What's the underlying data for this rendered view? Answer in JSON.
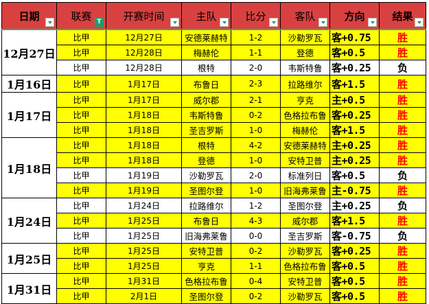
{
  "headers": [
    "日期",
    "联赛",
    "开赛时间",
    "主队",
    "比分",
    "客队",
    "方向",
    "结果"
  ],
  "colors": {
    "header_bg": "#D94141",
    "highlight": "#FFFF00",
    "win": "#FF0000"
  },
  "groups": [
    {
      "date": "12月27日",
      "rows": [
        [
          "比甲",
          "12月27日",
          "安德莱赫特",
          "1-2",
          "沙勒罗瓦",
          "客+0.75",
          "胜"
        ],
        [
          "比甲",
          "12月28日",
          "梅赫伦",
          "1-1",
          "登德",
          "客+0.5",
          "胜"
        ],
        [
          "比甲",
          "12月28日",
          "根特",
          "2-0",
          "韦斯特鲁",
          "客+0.25",
          "负"
        ]
      ]
    },
    {
      "date": "1月16日",
      "rows": [
        [
          "比甲",
          "1月17日",
          "布鲁日",
          "2-3",
          "拉路维尔",
          "客+1.5",
          "胜"
        ]
      ]
    },
    {
      "date": "1月17日",
      "rows": [
        [
          "比甲",
          "1月17日",
          "威尔郡",
          "2-1",
          "亨克",
          "主+0.5",
          "胜"
        ],
        [
          "比甲",
          "1月18日",
          "韦斯特鲁",
          "0-2",
          "色格拉布鲁",
          "客+0.25",
          "胜"
        ],
        [
          "比甲",
          "1月18日",
          "圣吉罗斯",
          "1-0",
          "梅赫伦",
          "客+1.5",
          "胜"
        ]
      ]
    },
    {
      "date": "1月18日",
      "rows": [
        [
          "比甲",
          "1月18日",
          "根特",
          "4-2",
          "安德莱赫特",
          "主+0.25",
          "胜"
        ],
        [
          "比甲",
          "1月18日",
          "登德",
          "1-0",
          "安特卫普",
          "主+0.25",
          "胜"
        ],
        [
          "比甲",
          "1月19日",
          "沙勒罗瓦",
          "2-0",
          "标准列日",
          "客+0.5",
          "负"
        ],
        [
          "比甲",
          "1月19日",
          "圣图尔登",
          "1-0",
          "旧海弗莱鲁",
          "主-0.75",
          "胜"
        ]
      ]
    },
    {
      "date": "1月24日",
      "rows": [
        [
          "比甲",
          "1月24日",
          "拉路维尔",
          "1-2",
          "圣图尔登",
          "主+0.25",
          "负"
        ],
        [
          "比甲",
          "1月25日",
          "布鲁日",
          "4-3",
          "威尔郡",
          "客+1.5",
          "胜"
        ],
        [
          "比甲",
          "1月25日",
          "旧海弗莱鲁",
          "0-0",
          "圣吉罗斯",
          "客-0.75",
          "负"
        ]
      ]
    },
    {
      "date": "1月25日",
      "rows": [
        [
          "比甲",
          "1月25日",
          "安特卫普",
          "0-2",
          "沙勒罗瓦",
          "客+0.25",
          "胜"
        ],
        [
          "比甲",
          "1月25日",
          "亨克",
          "1-1",
          "色格拉布鲁",
          "客+0.5",
          "胜"
        ]
      ]
    },
    {
      "date": "1月31日",
      "rows": [
        [
          "比甲",
          "1月31日",
          "色格拉布鲁",
          "0-4",
          "安特卫普",
          "客+0.5",
          "胜"
        ],
        [
          "比甲",
          "2月1日",
          "圣图尔登",
          "0-2",
          "沙勒罗瓦",
          "客+0.5",
          "胜"
        ]
      ]
    }
  ]
}
